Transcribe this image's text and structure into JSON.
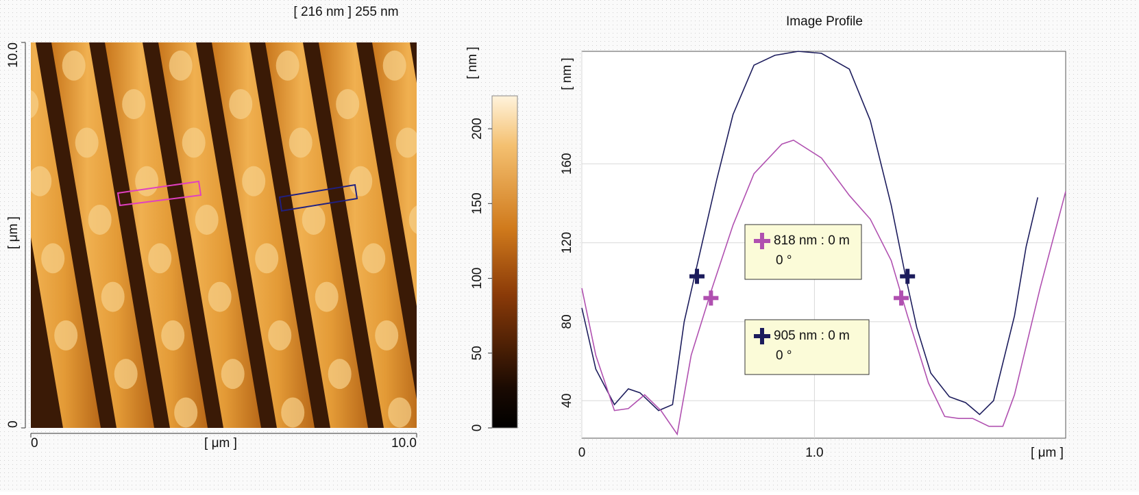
{
  "chart_data": [
    {
      "type": "image",
      "title": "[ 216 nm ] 255 nm",
      "xlabel": "[ μm ]",
      "ylabel": "[ μm ]",
      "xlim": [
        0,
        10
      ],
      "ylim": [
        0,
        10
      ],
      "xticks": [
        0,
        {
          "value": 10,
          "label": "10.0"
        }
      ],
      "yticks": [
        0,
        {
          "value": 10,
          "label": "10.0"
        }
      ]
    },
    {
      "type": "colorbar",
      "ylabel": "[ nm ]",
      "ylim": [
        0,
        222
      ],
      "yticks": [
        0,
        50,
        100,
        150,
        200
      ]
    },
    {
      "type": "line",
      "title": "Image Profile",
      "xlabel": "[ μm ]",
      "ylabel": "[ nm ]",
      "xlim": [
        0,
        2.08
      ],
      "ylim": [
        21,
        217
      ],
      "xticks": [
        0,
        {
          "value": 1,
          "label": "1.0"
        }
      ],
      "yticks": [
        40,
        80,
        120,
        160
      ],
      "grid": true,
      "series": [
        {
          "color": "#1c1c5c",
          "x": [
            0,
            0.06,
            0.14,
            0.2,
            0.25,
            0.33,
            0.39,
            0.44,
            0.5,
            0.58,
            0.65,
            0.74,
            0.83,
            0.93,
            1.03,
            1.15,
            1.24,
            1.33,
            1.39,
            1.44,
            1.5,
            1.58,
            1.65,
            1.71,
            1.77,
            1.86,
            1.91,
            1.96
          ],
          "y": [
            87,
            56,
            38,
            46,
            44,
            35,
            38,
            80,
            111,
            152,
            185,
            210,
            215,
            217,
            216,
            208,
            182,
            139,
            104,
            77,
            54,
            42,
            39,
            33,
            40,
            83,
            118,
            143
          ],
          "cursor_x": [
            0.495,
            1.4
          ],
          "cursor_y": [
            103,
            103
          ]
        },
        {
          "color": "#b050b0",
          "x": [
            0,
            0.06,
            0.14,
            0.2,
            0.27,
            0.34,
            0.41,
            0.47,
            0.56,
            0.65,
            0.74,
            0.86,
            0.91,
            1.03,
            1.15,
            1.24,
            1.33,
            1.4,
            1.49,
            1.56,
            1.62,
            1.68,
            1.75,
            1.81,
            1.86,
            1.97,
            2.08
          ],
          "y": [
            97,
            63,
            35,
            36,
            43,
            35,
            23,
            63,
            97,
            129,
            155,
            170,
            172,
            163,
            144,
            132,
            111,
            83,
            49,
            32,
            31,
            31,
            27,
            27,
            43,
            97,
            146
          ],
          "cursor_x": [
            0.555,
            1.373
          ],
          "cursor_y": [
            92,
            92
          ]
        }
      ],
      "annotations": [
        {
          "text": "818 nm : 0 m",
          "angle": "0 °"
        },
        {
          "text": "905 nm : 0 m",
          "angle": "0 °"
        }
      ]
    }
  ]
}
